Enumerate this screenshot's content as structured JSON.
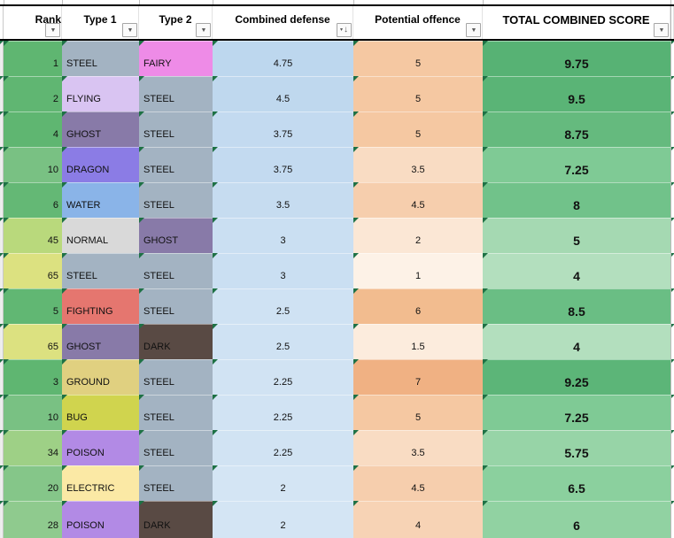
{
  "header": {
    "columns": [
      {
        "label": "Rank",
        "icon": "filter-dropdown-icon",
        "glyph": "▼",
        "glyph2": ""
      },
      {
        "label": "Type 1",
        "icon": "filter-dropdown-icon",
        "glyph": "▼",
        "glyph2": ""
      },
      {
        "label": "Type 2",
        "icon": "filter-dropdown-icon",
        "glyph": "▼",
        "glyph2": ""
      },
      {
        "label": "Combined defense",
        "icon": "filter-sorted-descending-icon",
        "glyph": "↓",
        "glyph2": "▾"
      },
      {
        "label": "Potential offence",
        "icon": "filter-dropdown-icon",
        "glyph": "▼",
        "glyph2": ""
      },
      {
        "label": "TOTAL COMBINED SCORE",
        "icon": "filter-dropdown-icon",
        "glyph": "▼",
        "glyph2": ""
      }
    ]
  },
  "colors": {
    "error_indicator_green": "#1E7145",
    "header_border_black": "#000000",
    "gridline_gray": "#bfbfbf"
  },
  "rows": [
    {
      "rank": "1",
      "rank_bg": "#5fb671",
      "type1": "STEEL",
      "type1_bg": "#a3b3c2",
      "type2": "FAIRY",
      "type2_bg": "#ee8be7",
      "defense": "4.75",
      "defense_bg": "#bdd7ee",
      "offence": "5",
      "offence_bg": "#f5c8a2",
      "total": "9.75",
      "total_bg": "#57b274"
    },
    {
      "rank": "2",
      "rank_bg": "#60b672",
      "type1": "FLYING",
      "type1_bg": "#d9c4f2",
      "type2": "STEEL",
      "type2_bg": "#a3b3c2",
      "defense": "4.5",
      "defense_bg": "#bfd8ee",
      "offence": "5",
      "offence_bg": "#f5c8a2",
      "total": "9.5",
      "total_bg": "#5ab476"
    },
    {
      "rank": "4",
      "rank_bg": "#5fb671",
      "type1": "GHOST",
      "type1_bg": "#887aa8",
      "type2": "STEEL",
      "type2_bg": "#a3b3c2",
      "defense": "3.75",
      "defense_bg": "#c3daf0",
      "offence": "5",
      "offence_bg": "#f5c8a2",
      "total": "8.75",
      "total_bg": "#65ba7e"
    },
    {
      "rank": "10",
      "rank_bg": "#79c183",
      "type1": "DRAGON",
      "type1_bg": "#8b7ce5",
      "type2": "STEEL",
      "type2_bg": "#a3b3c2",
      "defense": "3.75",
      "defense_bg": "#c3daf0",
      "offence": "3.5",
      "offence_bg": "#f9dcc3",
      "total": "7.25",
      "total_bg": "#7fca95"
    },
    {
      "rank": "6",
      "rank_bg": "#64b875",
      "type1": "WATER",
      "type1_bg": "#8ab4e8",
      "type2": "STEEL",
      "type2_bg": "#a3b3c2",
      "defense": "3.5",
      "defense_bg": "#c6dcf0",
      "offence": "4.5",
      "offence_bg": "#f6cead",
      "total": "8",
      "total_bg": "#71c28a"
    },
    {
      "rank": "45",
      "rank_bg": "#b9d97c",
      "type1": "NORMAL",
      "type1_bg": "#d9d9d9",
      "type2": "GHOST",
      "type2_bg": "#887aa8",
      "defense": "3",
      "defense_bg": "#cadff2",
      "offence": "2",
      "offence_bg": "#fbe7d5",
      "total": "5",
      "total_bg": "#a5d9b2"
    },
    {
      "rank": "65",
      "rank_bg": "#dce180",
      "type1": "STEEL",
      "type1_bg": "#a3b3c2",
      "type2": "STEEL",
      "type2_bg": "#a3b3c2",
      "defense": "3",
      "defense_bg": "#cadff2",
      "offence": "1",
      "offence_bg": "#fdf2e7",
      "total": "4",
      "total_bg": "#b3dfbe"
    },
    {
      "rank": "5",
      "rank_bg": "#61b773",
      "type1": "FIGHTING",
      "type1_bg": "#e5766f",
      "type2": "STEEL",
      "type2_bg": "#a3b3c2",
      "defense": "2.5",
      "defense_bg": "#cfe2f3",
      "offence": "6",
      "offence_bg": "#f2bc8f",
      "total": "8.5",
      "total_bg": "#6abe84"
    },
    {
      "rank": "65",
      "rank_bg": "#dce180",
      "type1": "GHOST",
      "type1_bg": "#887aa8",
      "type2": "DARK",
      "type2_bg": "#594a44",
      "defense": "2.5",
      "defense_bg": "#cfe2f3",
      "offence": "1.5",
      "offence_bg": "#fcecdd",
      "total": "4",
      "total_bg": "#b3dfbe"
    },
    {
      "rank": "3",
      "rank_bg": "#5fb671",
      "type1": "GROUND",
      "type1_bg": "#e0d080",
      "type2": "STEEL",
      "type2_bg": "#a3b3c2",
      "defense": "2.25",
      "defense_bg": "#d1e3f3",
      "offence": "7",
      "offence_bg": "#f0b183",
      "total": "9.25",
      "total_bg": "#5cb578"
    },
    {
      "rank": "10",
      "rank_bg": "#79c183",
      "type1": "BUG",
      "type1_bg": "#d0d44e",
      "type2": "STEEL",
      "type2_bg": "#a3b3c2",
      "defense": "2.25",
      "defense_bg": "#d1e3f3",
      "offence": "5",
      "offence_bg": "#f5c8a2",
      "total": "7.25",
      "total_bg": "#7fca95"
    },
    {
      "rank": "34",
      "rank_bg": "#9ed086",
      "type1": "POISON",
      "type1_bg": "#b28ae5",
      "type2": "STEEL",
      "type2_bg": "#a3b3c2",
      "defense": "2.25",
      "defense_bg": "#d1e3f3",
      "offence": "3.5",
      "offence_bg": "#f9dcc3",
      "total": "5.75",
      "total_bg": "#97d4a7"
    },
    {
      "rank": "20",
      "rank_bg": "#85c689",
      "type1": "ELECTRIC",
      "type1_bg": "#fbe9a5",
      "type2": "STEEL",
      "type2_bg": "#a3b3c2",
      "defense": "2",
      "defense_bg": "#d4e5f4",
      "offence": "4.5",
      "offence_bg": "#f6cead",
      "total": "6.5",
      "total_bg": "#8bd09e"
    },
    {
      "rank": "28",
      "rank_bg": "#8fca8e",
      "type1": "POISON",
      "type1_bg": "#b28ae5",
      "type2": "DARK",
      "type2_bg": "#594a44",
      "defense": "2",
      "defense_bg": "#d4e5f4",
      "offence": "4",
      "offence_bg": "#f7d3b5",
      "total": "6",
      "total_bg": "#91d2a2"
    }
  ]
}
